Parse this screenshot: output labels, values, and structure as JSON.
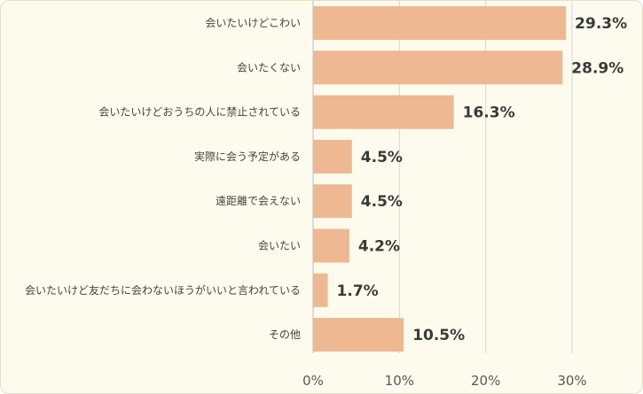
{
  "chart_data": {
    "type": "bar",
    "orientation": "horizontal",
    "categories": [
      "会いたいけどこわい",
      "会いたくない",
      "会いたいけどおうちの人に禁止されている",
      "実際に会う予定がある",
      "遠距離で会えない",
      "会いたい",
      "会いたいけど友だちに会わないほうがいいと言われている",
      "その他"
    ],
    "values": [
      29.3,
      28.9,
      16.3,
      4.5,
      4.5,
      4.2,
      1.7,
      10.5
    ],
    "value_labels": [
      "29.3%",
      "28.9%",
      "16.3%",
      "4.5%",
      "4.5%",
      "4.2%",
      "1.7%",
      "10.5%"
    ],
    "xlim": [
      0,
      30
    ],
    "xticks": [
      0,
      10,
      20,
      30
    ],
    "xtick_labels": [
      "0%",
      "10%",
      "20%",
      "30%"
    ],
    "title": "",
    "xlabel": "",
    "ylabel": "",
    "grid": "vertical",
    "legend": "none",
    "colors": {
      "bar": "#edb892",
      "background": "#fdfbee",
      "gridline": "#d6d6d6",
      "axis": "#bdbdbd",
      "value_text": "#3a3a3a",
      "category_text": "#444444",
      "tick_text": "#595959"
    }
  }
}
